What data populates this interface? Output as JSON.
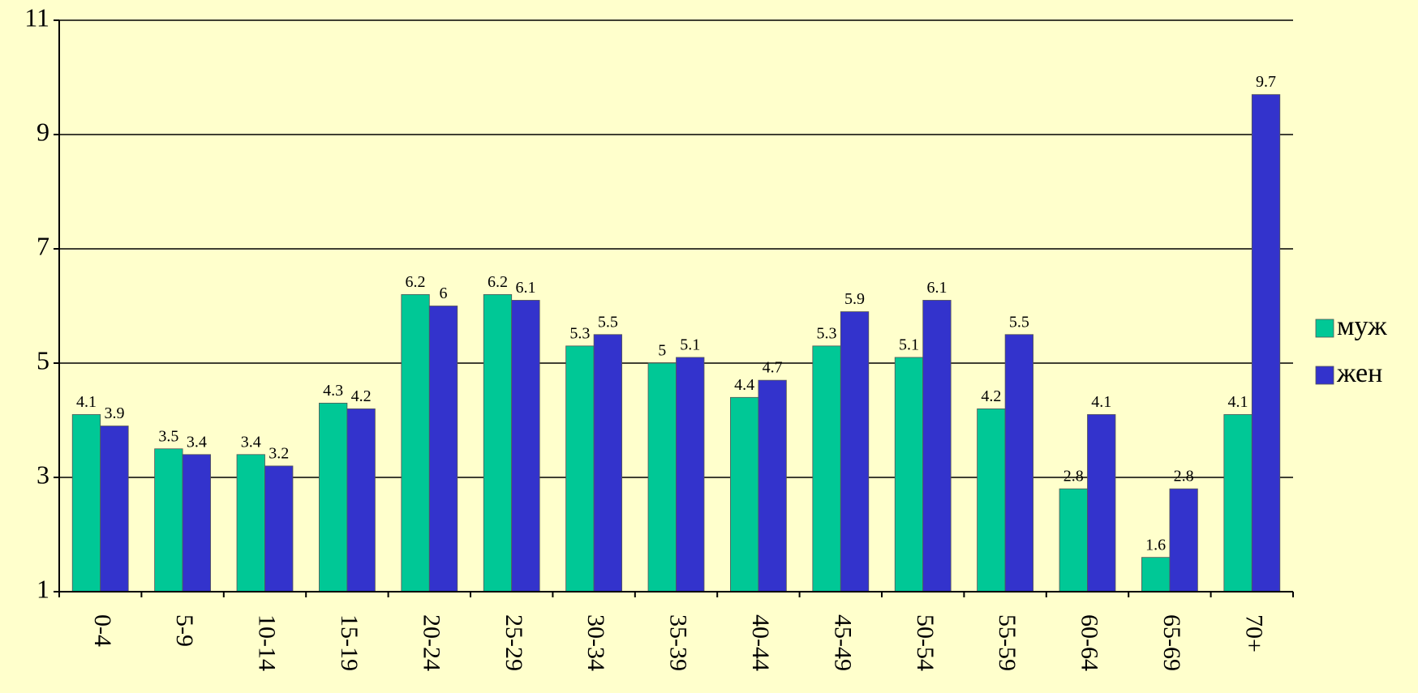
{
  "chart_data": {
    "type": "bar",
    "categories": [
      "0-4",
      "5-9",
      "10-14",
      "15-19",
      "20-24",
      "25-29",
      "30-34",
      "35-39",
      "40-44",
      "45-49",
      "50-54",
      "55-59",
      "60-64",
      "65-69",
      "70+"
    ],
    "series": [
      {
        "name": "муж",
        "color": "#00c896",
        "values": [
          4.1,
          3.5,
          3.4,
          4.3,
          6.2,
          6.2,
          5.3,
          5,
          4.4,
          5.3,
          5.1,
          4.2,
          2.8,
          1.6,
          4.1
        ]
      },
      {
        "name": "жен",
        "color": "#3333cc",
        "values": [
          3.9,
          3.4,
          3.2,
          4.2,
          6,
          6.1,
          5.5,
          5.1,
          4.7,
          5.9,
          6.1,
          5.5,
          4.1,
          2.8,
          9.7
        ]
      }
    ],
    "ylim": [
      1,
      11
    ],
    "yticks": [
      1,
      3,
      5,
      7,
      9,
      11
    ],
    "grid": true,
    "legend": "right"
  }
}
